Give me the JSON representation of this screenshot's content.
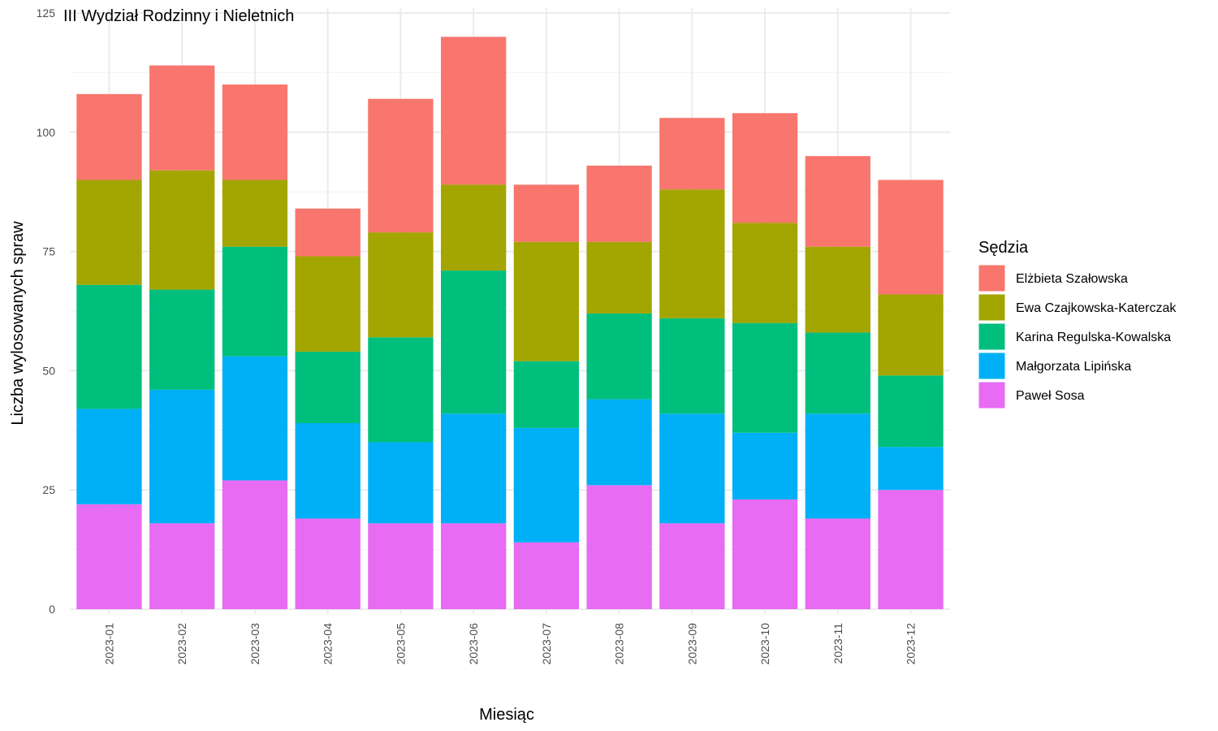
{
  "chart_data": {
    "type": "bar",
    "stacked": true,
    "title": "III Wydział Rodzinny i Nieletnich",
    "xlabel": "Miesiąc",
    "ylabel": "Liczba wylosowanych spraw",
    "ylim": [
      0,
      125
    ],
    "yticks": [
      0,
      25,
      50,
      75,
      100,
      125
    ],
    "grid": true,
    "legend": {
      "title": "Sędzia",
      "position": "right"
    },
    "categories": [
      "2023-01",
      "2023-02",
      "2023-03",
      "2023-04",
      "2023-05",
      "2023-06",
      "2023-07",
      "2023-08",
      "2023-09",
      "2023-10",
      "2023-11",
      "2023-12"
    ],
    "series": [
      {
        "name": "Paweł Sosa",
        "color": "#E76BF3",
        "values": [
          22,
          18,
          27,
          19,
          18,
          18,
          14,
          26,
          18,
          23,
          19,
          25
        ]
      },
      {
        "name": "Małgorzata Lipińska",
        "color": "#00B0F6",
        "values": [
          20,
          28,
          26,
          20,
          17,
          23,
          24,
          18,
          23,
          14,
          22,
          9
        ]
      },
      {
        "name": "Karina Regulska-Kowalska",
        "color": "#00BF7D",
        "values": [
          26,
          21,
          23,
          15,
          22,
          30,
          14,
          18,
          20,
          23,
          17,
          15
        ]
      },
      {
        "name": "Ewa Czajkowska-Katerczak",
        "color": "#A3A500",
        "values": [
          22,
          25,
          14,
          20,
          22,
          18,
          25,
          15,
          27,
          21,
          18,
          17
        ]
      },
      {
        "name": "Elżbieta Szałowska",
        "color": "#F8766D",
        "values": [
          18,
          22,
          20,
          10,
          28,
          31,
          12,
          16,
          15,
          23,
          19,
          24
        ]
      }
    ],
    "legend_order": [
      "Elżbieta Szałowska",
      "Ewa Czajkowska-Katerczak",
      "Karina Regulska-Kowalska",
      "Małgorzata Lipińska",
      "Paweł Sosa"
    ]
  }
}
